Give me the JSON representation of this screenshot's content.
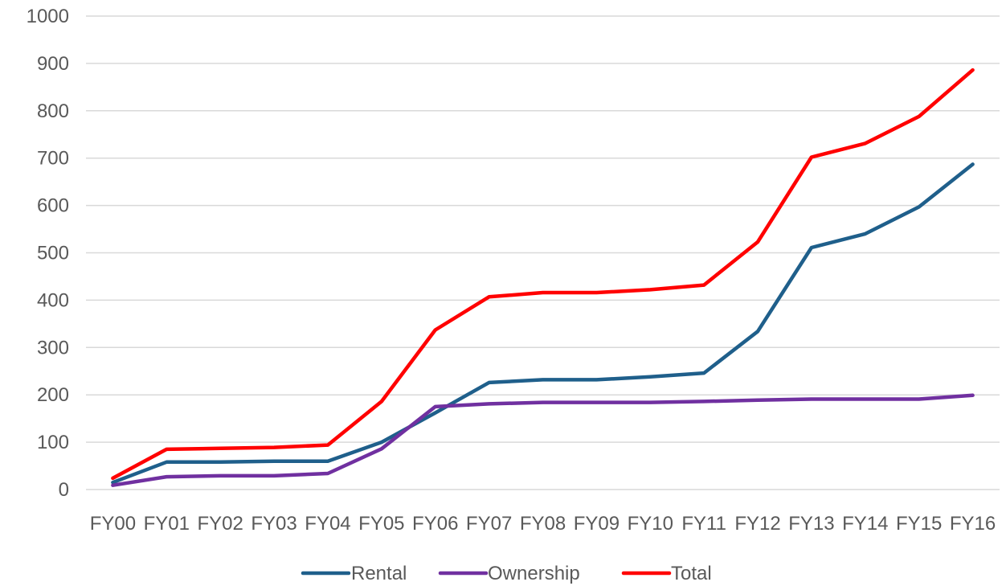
{
  "chart_data": {
    "type": "line",
    "title": "",
    "xlabel": "",
    "ylabel": "",
    "categories": [
      "FY00",
      "FY01",
      "FY02",
      "FY03",
      "FY04",
      "FY05",
      "FY06",
      "FY07",
      "FY08",
      "FY09",
      "FY10",
      "FY11",
      "FY12",
      "FY13",
      "FY14",
      "FY15",
      "FY16"
    ],
    "ylim": [
      0,
      1000
    ],
    "yticks": [
      0,
      100,
      200,
      300,
      400,
      500,
      600,
      700,
      800,
      900,
      1000
    ],
    "grid": true,
    "legend_position": "bottom",
    "series": [
      {
        "name": "Rental",
        "color": "#1f5f8b",
        "values": [
          15,
          58,
          58,
          60,
          60,
          100,
          162,
          226,
          232,
          232,
          238,
          246,
          334,
          511,
          540,
          597,
          687
        ]
      },
      {
        "name": "Ownership",
        "color": "#7030a0",
        "values": [
          9,
          27,
          29,
          29,
          34,
          86,
          175,
          181,
          184,
          184,
          184,
          186,
          189,
          191,
          191,
          191,
          199
        ]
      },
      {
        "name": "Total",
        "color": "#ff0000",
        "values": [
          24,
          85,
          87,
          89,
          94,
          186,
          337,
          407,
          416,
          416,
          422,
          432,
          523,
          702,
          731,
          788,
          886
        ]
      }
    ]
  }
}
